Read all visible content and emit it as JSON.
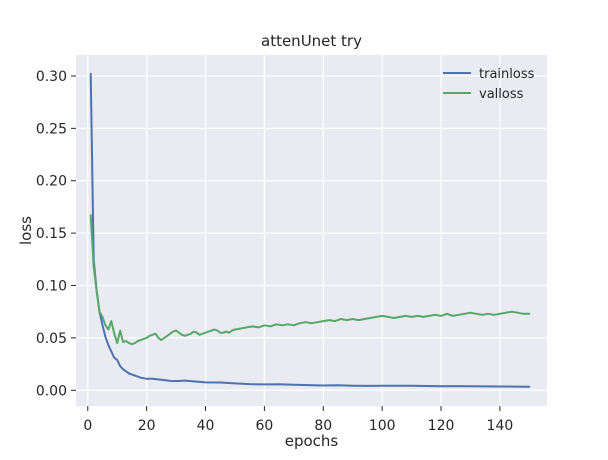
{
  "chart_data": {
    "type": "line",
    "title": "attenUnet try",
    "xlabel": "epochs",
    "ylabel": "loss",
    "xlim": [
      -4,
      156
    ],
    "ylim": [
      -0.015,
      0.32
    ],
    "xticks": [
      0,
      20,
      40,
      60,
      80,
      100,
      120,
      140
    ],
    "yticks": [
      0.0,
      0.05,
      0.1,
      0.15,
      0.2,
      0.25,
      0.3
    ],
    "xtick_labels": [
      "0",
      "20",
      "40",
      "60",
      "80",
      "100",
      "120",
      "140"
    ],
    "ytick_labels": [
      "0.00",
      "0.05",
      "0.10",
      "0.15",
      "0.20",
      "0.25",
      "0.30"
    ],
    "grid": true,
    "legend_position": "top-right",
    "series": [
      {
        "name": "trainloss",
        "color": "#4c72b0",
        "x": [
          1,
          2,
          3,
          4,
          5,
          6,
          7,
          8,
          9,
          10,
          11,
          12,
          14,
          16,
          18,
          20,
          22,
          25,
          28,
          30,
          33,
          36,
          40,
          45,
          50,
          55,
          60,
          65,
          70,
          75,
          80,
          85,
          90,
          95,
          100,
          105,
          110,
          115,
          120,
          125,
          130,
          135,
          140,
          145,
          150
        ],
        "y": [
          0.302,
          0.125,
          0.095,
          0.075,
          0.062,
          0.051,
          0.043,
          0.037,
          0.031,
          0.029,
          0.023,
          0.02,
          0.016,
          0.014,
          0.012,
          0.011,
          0.011,
          0.01,
          0.009,
          0.0088,
          0.0092,
          0.0085,
          0.0075,
          0.0074,
          0.0066,
          0.0059,
          0.0056,
          0.0057,
          0.0052,
          0.0049,
          0.0046,
          0.0048,
          0.0044,
          0.0042,
          0.0043,
          0.0043,
          0.0044,
          0.0041,
          0.0039,
          0.004,
          0.0039,
          0.0037,
          0.0036,
          0.0035,
          0.0034
        ]
      },
      {
        "name": "valloss",
        "color": "#55a868",
        "x": [
          1,
          2,
          3,
          4,
          5,
          6,
          7,
          8,
          9,
          10,
          11,
          12,
          13,
          14,
          15,
          16,
          17,
          18,
          19,
          20,
          21,
          22,
          23,
          24,
          25,
          26,
          27,
          28,
          29,
          30,
          31,
          32,
          33,
          34,
          35,
          36,
          37,
          38,
          39,
          40,
          41,
          42,
          43,
          44,
          45,
          46,
          47,
          48,
          49,
          50,
          52,
          54,
          56,
          58,
          60,
          62,
          64,
          66,
          68,
          70,
          72,
          74,
          76,
          78,
          80,
          82,
          84,
          86,
          88,
          90,
          92,
          94,
          96,
          98,
          100,
          102,
          104,
          106,
          108,
          110,
          112,
          114,
          116,
          118,
          120,
          122,
          124,
          126,
          128,
          130,
          132,
          134,
          136,
          138,
          140,
          142,
          144,
          146,
          148,
          150
        ],
        "y": [
          0.167,
          0.118,
          0.095,
          0.075,
          0.07,
          0.062,
          0.058,
          0.066,
          0.054,
          0.045,
          0.057,
          0.046,
          0.047,
          0.045,
          0.044,
          0.045,
          0.047,
          0.048,
          0.049,
          0.05,
          0.052,
          0.053,
          0.054,
          0.05,
          0.048,
          0.05,
          0.052,
          0.054,
          0.056,
          0.057,
          0.055,
          0.053,
          0.052,
          0.053,
          0.054,
          0.056,
          0.055,
          0.053,
          0.054,
          0.055,
          0.056,
          0.057,
          0.058,
          0.057,
          0.055,
          0.055,
          0.056,
          0.055,
          0.057,
          0.058,
          0.059,
          0.06,
          0.061,
          0.06,
          0.062,
          0.061,
          0.063,
          0.062,
          0.063,
          0.062,
          0.064,
          0.065,
          0.064,
          0.065,
          0.066,
          0.067,
          0.066,
          0.068,
          0.067,
          0.068,
          0.067,
          0.068,
          0.069,
          0.07,
          0.071,
          0.07,
          0.069,
          0.07,
          0.071,
          0.07,
          0.071,
          0.07,
          0.071,
          0.072,
          0.071,
          0.073,
          0.071,
          0.072,
          0.073,
          0.074,
          0.073,
          0.072,
          0.073,
          0.072,
          0.073,
          0.074,
          0.075,
          0.074,
          0.073,
          0.073
        ]
      }
    ]
  }
}
